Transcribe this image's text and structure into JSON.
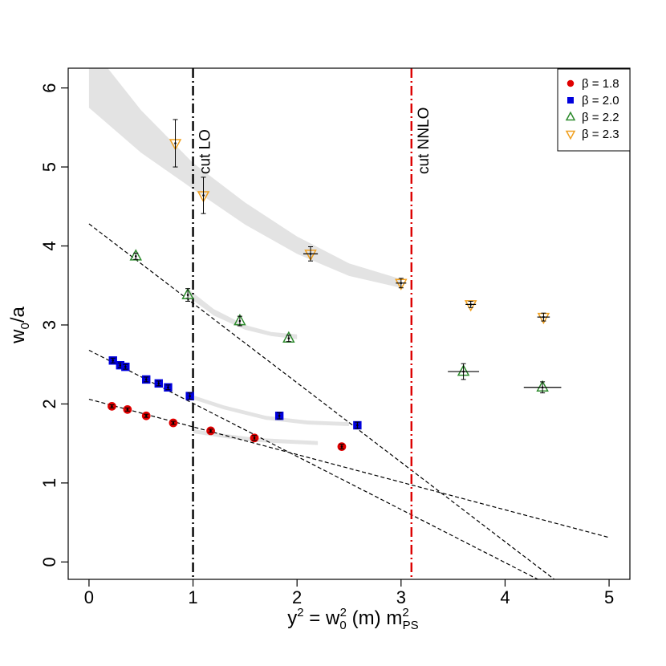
{
  "chart_data": {
    "type": "scatter",
    "xlabel": {
      "prefix": "y",
      "sup": "2",
      "mid": " = w",
      "sub0": "0",
      "sup2": "2",
      "mid2": " (m) m",
      "sup3": "2",
      "sub3": "PS"
    },
    "ylabel": {
      "main": "w",
      "sub": "0",
      "tail": "/a"
    },
    "xlim": [
      -0.2,
      5.2
    ],
    "ylim": [
      -0.22,
      6.25
    ],
    "x_ticks": [
      0,
      1,
      2,
      3,
      4,
      5
    ],
    "x_tick_labels": [
      "0",
      "1",
      "2",
      "3",
      "4",
      "5"
    ],
    "y_ticks": [
      0,
      1,
      2,
      3,
      4,
      5,
      6
    ],
    "y_tick_labels": [
      "0",
      "1",
      "2",
      "3",
      "4",
      "5",
      "6"
    ],
    "vlines": [
      {
        "x": 1.0,
        "label": "cut LO",
        "color": "#000000",
        "style": "dashdot"
      },
      {
        "x": 3.1,
        "label": "cut NNLO",
        "color": "#dd0000",
        "style": "dashdot"
      }
    ],
    "legend": {
      "position": "top-right",
      "entries": [
        {
          "label": "β = 1.8",
          "marker": "circle",
          "color": "#e00000"
        },
        {
          "label": "β = 2.0",
          "marker": "square",
          "color": "#0000dd"
        },
        {
          "label": "β = 2.2",
          "marker": "triangle-up",
          "color": "#2e8b2e"
        },
        {
          "label": "β = 2.3",
          "marker": "triangle-down",
          "color": "#f0a020"
        }
      ]
    },
    "series": [
      {
        "name": "β = 1.8",
        "marker": "circle",
        "color": "#e00000",
        "x": [
          0.22,
          0.37,
          0.55,
          0.81,
          1.17,
          1.59,
          2.43
        ],
        "y": [
          1.97,
          1.93,
          1.85,
          1.76,
          1.66,
          1.57,
          1.46
        ],
        "yerr": [
          0.02,
          0.02,
          0.02,
          0.02,
          0.02,
          0.03,
          0.03
        ],
        "xerr": [
          0,
          0,
          0,
          0,
          0,
          0,
          0
        ]
      },
      {
        "name": "β = 2.0",
        "marker": "square",
        "color": "#0000dd",
        "x": [
          0.23,
          0.3,
          0.35,
          0.55,
          0.67,
          0.76,
          0.97,
          1.83,
          2.58
        ],
        "y": [
          2.55,
          2.49,
          2.47,
          2.31,
          2.26,
          2.21,
          2.1,
          1.85,
          1.73
        ],
        "yerr": [
          0.03,
          0.03,
          0.03,
          0.03,
          0.03,
          0.03,
          0.04,
          0.04,
          0.04
        ],
        "xerr": [
          0,
          0,
          0,
          0,
          0,
          0,
          0,
          0,
          0
        ]
      },
      {
        "name": "β = 2.2",
        "marker": "triangle-up",
        "color": "#2e8b2e",
        "x": [
          0.45,
          0.95,
          1.45,
          1.92,
          3.6,
          4.36
        ],
        "y": [
          3.87,
          3.38,
          3.05,
          2.83,
          2.41,
          2.21
        ],
        "yerr": [
          0.04,
          0.08,
          0.06,
          0.04,
          0.1,
          0.07
        ],
        "xerr": [
          0,
          0,
          0,
          0,
          0.15,
          0.18
        ]
      },
      {
        "name": "β = 2.3",
        "marker": "triangle-down",
        "color": "#f0a020",
        "x": [
          0.83,
          1.1,
          2.13,
          3.0,
          3.67,
          4.37
        ],
        "y": [
          5.3,
          4.64,
          3.9,
          3.53,
          3.26,
          3.1
        ],
        "yerr": [
          0.3,
          0.23,
          0.09,
          0.06,
          0.04,
          0.05
        ],
        "xerr": [
          0,
          0,
          0.07,
          0.05,
          0.05,
          0.06
        ]
      }
    ],
    "linear_fits": [
      {
        "x": [
          0,
          5
        ],
        "y": [
          2.06,
          0.31
        ]
      },
      {
        "x": [
          0,
          5
        ],
        "y": [
          2.68,
          -0.68
        ]
      },
      {
        "x": [
          0,
          5
        ],
        "y": [
          4.28,
          -0.75
        ]
      }
    ],
    "fit_bands": [
      {
        "name": "β = 2.3",
        "x": [
          0,
          0.5,
          1.0,
          1.5,
          2.0,
          2.5,
          3.0
        ],
        "y_low": [
          5.75,
          5.18,
          4.72,
          4.27,
          3.9,
          3.62,
          3.47
        ],
        "y_high": [
          6.55,
          5.72,
          5.05,
          4.55,
          4.12,
          3.78,
          3.58
        ]
      },
      {
        "name": "β = 2.2",
        "x": [
          0.95,
          1.2,
          1.5,
          1.75,
          2.0
        ],
        "y_low": [
          3.36,
          3.12,
          2.94,
          2.86,
          2.82
        ],
        "y_high": [
          3.46,
          3.2,
          3.0,
          2.91,
          2.88
        ]
      },
      {
        "name": "β = 2.0",
        "x": [
          0.95,
          1.3,
          1.7,
          2.1,
          2.5
        ],
        "y_low": [
          2.08,
          1.93,
          1.8,
          1.74,
          1.72
        ],
        "y_high": [
          2.13,
          1.98,
          1.85,
          1.79,
          1.77
        ]
      },
      {
        "name": "β = 1.8",
        "x": [
          1.0,
          1.3,
          1.6,
          1.9,
          2.2
        ],
        "y_low": [
          1.63,
          1.57,
          1.52,
          1.5,
          1.48
        ],
        "y_high": [
          1.68,
          1.62,
          1.57,
          1.55,
          1.53
        ]
      }
    ]
  }
}
